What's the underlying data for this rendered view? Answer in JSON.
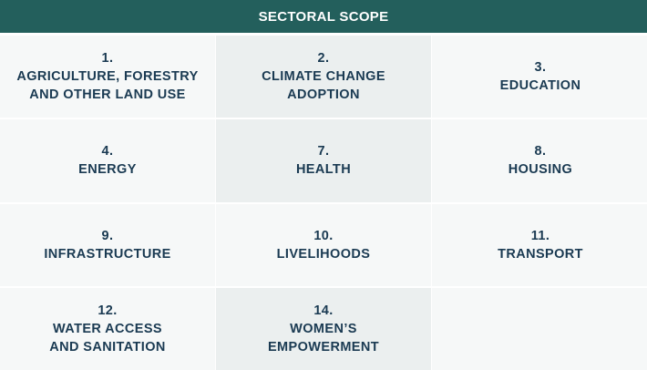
{
  "header": {
    "title": "SECTORAL SCOPE"
  },
  "cells": [
    {
      "number": "1.",
      "lines": [
        "AGRICULTURE, FORESTRY",
        "AND OTHER LAND USE"
      ]
    },
    {
      "number": "2.",
      "lines": [
        "CLIMATE CHANGE",
        "ADOPTION"
      ]
    },
    {
      "number": "3.",
      "lines": [
        "EDUCATION"
      ]
    },
    {
      "number": "4.",
      "lines": [
        "ENERGY"
      ]
    },
    {
      "number": "7.",
      "lines": [
        "HEALTH"
      ]
    },
    {
      "number": "8.",
      "lines": [
        "HOUSING"
      ]
    },
    {
      "number": "9.",
      "lines": [
        "INFRASTRUCTURE"
      ]
    },
    {
      "number": "10.",
      "lines": [
        "LIVELIHOODS"
      ]
    },
    {
      "number": "11.",
      "lines": [
        "TRANSPORT"
      ]
    },
    {
      "number": "12.",
      "lines": [
        "WATER ACCESS",
        "AND SANITATION"
      ]
    },
    {
      "number": "14.",
      "lines": [
        "WOMEN’S",
        "EMPOWERMENT"
      ]
    },
    {
      "number": "",
      "lines": []
    }
  ],
  "colors": {
    "header_background": "#235f5c",
    "header_text": "#ffffff",
    "cell_text": "#1a3a52",
    "cell_light": "#f6f8f8",
    "cell_dark": "#ebefef"
  }
}
